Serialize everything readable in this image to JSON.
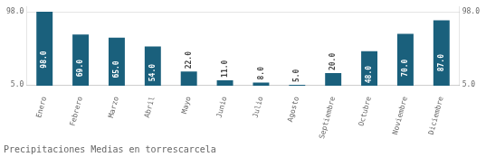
{
  "chart_data": {
    "type": "bar",
    "title": "Precipitaciones Medias en torrescarcela",
    "categories": [
      "Enero",
      "Febrero",
      "Marzo",
      "Abril",
      "Mayo",
      "Junio",
      "Julio",
      "Agosto",
      "Septiembre",
      "Octubre",
      "Noviembre",
      "Diciembre"
    ],
    "values": [
      98,
      69,
      65,
      54,
      22,
      11,
      8,
      5,
      20,
      48,
      70,
      87
    ],
    "value_labels": [
      "98.0",
      "69.0",
      "65.0",
      "54.0",
      "22.0",
      "11.0",
      "8.0",
      "5.0",
      "20.0",
      "48.0",
      "70.0",
      "87.0"
    ],
    "color": "#1a607c",
    "ylim": [
      4,
      104
    ],
    "yticks": [
      {
        "value": 5,
        "label": "5.0"
      },
      {
        "value": 98,
        "label": "98.0"
      }
    ],
    "y2lim": [
      4,
      104
    ],
    "y2ticks": [
      {
        "value": 5,
        "label": "5.0"
      },
      {
        "value": 98,
        "label": "98.0"
      }
    ],
    "grid": true,
    "data_labels": true
  }
}
